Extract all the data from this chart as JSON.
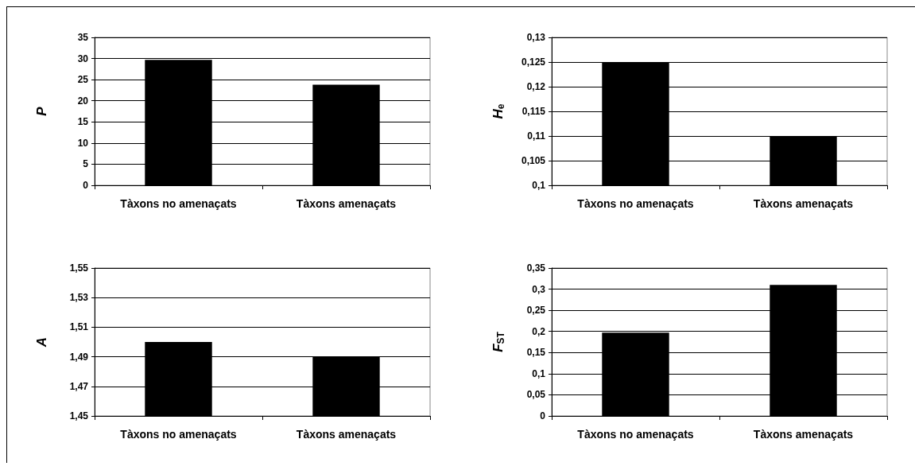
{
  "chart_data": [
    {
      "type": "bar",
      "ylabel": "P",
      "categories": [
        "Tàxons no amenaçats",
        "Tàxons amenaçats"
      ],
      "values": [
        29.7,
        23.8
      ],
      "color": "#000000",
      "ylim": [
        0,
        35
      ],
      "yticks": [
        0,
        5,
        10,
        15,
        20,
        25,
        30,
        35
      ],
      "grid": "y"
    },
    {
      "type": "bar",
      "ylabel": "H$_{e}$",
      "categories": [
        "Tàxons no amenaçats",
        "Tàxons amenaçats"
      ],
      "values": [
        0.125,
        0.11
      ],
      "color": "#000000",
      "ylim": [
        0.1,
        0.13
      ],
      "yticks": [
        {
          "value": 0.1,
          "label": "0,1"
        },
        {
          "value": 0.105,
          "label": "0,105"
        },
        {
          "value": 0.11,
          "label": "0,11"
        },
        {
          "value": 0.115,
          "label": "0,115"
        },
        {
          "value": 0.12,
          "label": "0,12"
        },
        {
          "value": 0.125,
          "label": "0,125"
        },
        {
          "value": 0.13,
          "label": "0,13"
        }
      ],
      "grid": "y"
    },
    {
      "type": "bar",
      "ylabel": "A",
      "categories": [
        "Tàxons no amenaçats",
        "Tàxons amenaçats"
      ],
      "values": [
        1.5,
        1.49
      ],
      "color": "#000000",
      "ylim": [
        1.45,
        1.55
      ],
      "yticks": [
        {
          "value": 1.45,
          "label": "1,45"
        },
        {
          "value": 1.47,
          "label": "1,47"
        },
        {
          "value": 1.49,
          "label": "1,49"
        },
        {
          "value": 1.51,
          "label": "1,51"
        },
        {
          "value": 1.53,
          "label": "1,53"
        },
        {
          "value": 1.55,
          "label": "1,55"
        }
      ],
      "grid": "y"
    },
    {
      "type": "bar",
      "ylabel": "F$_{ST}$",
      "categories": [
        "Tàxons no amenaçats",
        "Tàxons amenaçats"
      ],
      "values": [
        0.197,
        0.31
      ],
      "color": "#000000",
      "ylim": [
        0,
        0.35
      ],
      "yticks": [
        0,
        {
          "value": 0.05,
          "label": "0,05"
        },
        {
          "value": 0.1,
          "label": "0,1"
        },
        {
          "value": 0.15,
          "label": "0,15"
        },
        {
          "value": 0.2,
          "label": "0,2"
        },
        {
          "value": 0.25,
          "label": "0,25"
        },
        {
          "value": 0.3,
          "label": "0,3"
        },
        {
          "value": 0.35,
          "label": "0,35"
        }
      ],
      "grid": "y"
    }
  ]
}
